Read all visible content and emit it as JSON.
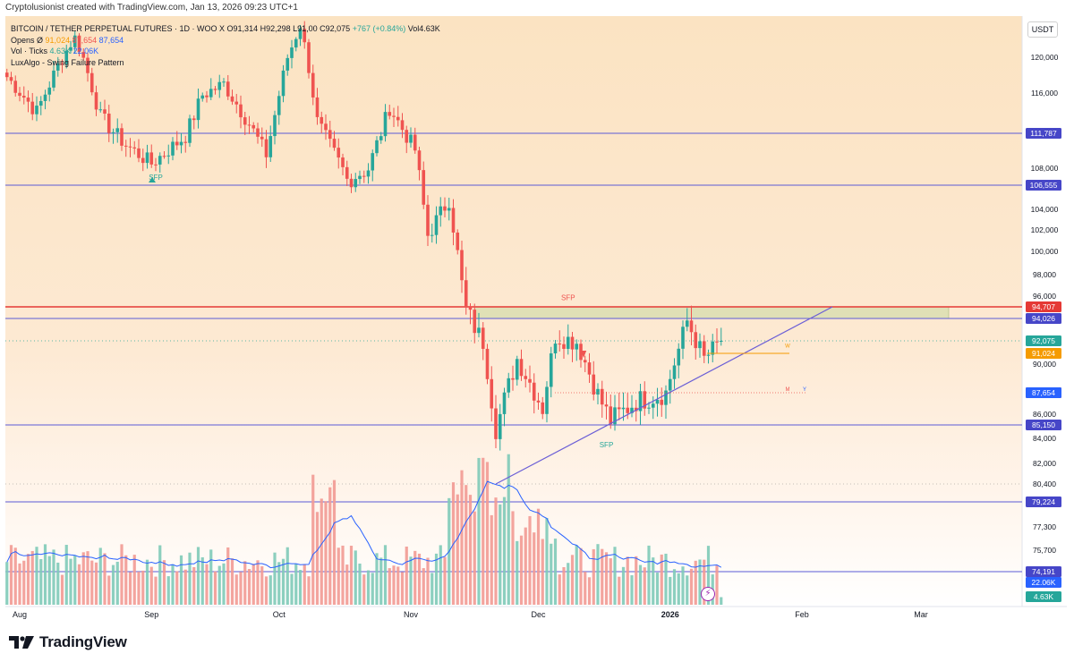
{
  "header": {
    "credit": "Cryptolusionist created with TradingView.com, Jan 13, 2026 09:23 UTC+1",
    "symbol": "BITCOIN / TETHER PERPETUAL FUTURES · 1D · WOO X",
    "ohlc": "O91,314 H92,298 L91,00 C92,075",
    "change": "+767 (+0.84%)",
    "vol": "Vol4.63K",
    "opens_label": "Opens  Ø",
    "opens_v1": "91,024",
    "opens_v2": "87,654",
    "opens_v3": "87,654",
    "vol_ticks_label": "Vol · Ticks",
    "vol_ticks_v1": "4.63K",
    "vol_ticks_v2": "22.06K",
    "indicator": "LuxAlgo - Swing Failure Pattern",
    "currency": "USDT"
  },
  "logo": {
    "text": "TradingView"
  },
  "chart_data": {
    "type": "candlestick",
    "timeframe": "1D",
    "x_ticks": [
      "Aug",
      "Sep",
      "Oct",
      "Nov",
      "Dec",
      "2026",
      "Feb",
      "Mar"
    ],
    "y_ticks": [
      "120,000",
      "116,000",
      "108,000",
      "104,000",
      "102,000",
      "100,000",
      "98,000",
      "96,000",
      "90,000",
      "86,000",
      "84,000",
      "82,000",
      "80,400",
      "77,300",
      "75,700"
    ],
    "price_labels": [
      {
        "text": "111,787",
        "value": 111787,
        "kind": "level"
      },
      {
        "text": "106,555",
        "value": 106555,
        "kind": "level"
      },
      {
        "text": "94,707",
        "value": 94707,
        "kind": "red"
      },
      {
        "text": "94,026",
        "value": 94026,
        "kind": "level"
      },
      {
        "text": "92,075",
        "value": 92075,
        "kind": "last"
      },
      {
        "text": "91,024",
        "value": 91024,
        "kind": "orange"
      },
      {
        "text": "87,654",
        "value": 87654,
        "kind": "red"
      },
      {
        "text": "87,654",
        "value": 87654,
        "kind": "blue"
      },
      {
        "text": "85,150",
        "value": 85150,
        "kind": "level"
      },
      {
        "text": "79,224",
        "value": 79224,
        "kind": "level"
      },
      {
        "text": "74,191",
        "value": 74191,
        "kind": "level"
      }
    ],
    "volume_labels": [
      "22.06K",
      "4.63K"
    ],
    "horizontal_levels": [
      111787,
      106555,
      94707,
      94026,
      85150,
      79224,
      74191
    ],
    "annotations": [
      {
        "text": "SFP",
        "color": "#26a69a"
      },
      {
        "text": "SFP",
        "color": "#ef5350"
      },
      {
        "text": "SFP",
        "color": "#26a69a"
      },
      {
        "text": "M",
        "color": "#ef5350"
      },
      {
        "text": "Y",
        "color": "#2962ff"
      },
      {
        "text": "W",
        "color": "#f59b00"
      }
    ],
    "anchor_closes": [
      [
        "2025-07-29",
        117800
      ],
      [
        "2025-08-05",
        114000
      ],
      [
        "2025-08-10",
        119000
      ],
      [
        "2025-08-14",
        123000
      ],
      [
        "2025-08-20",
        113500
      ],
      [
        "2025-08-26",
        110500
      ],
      [
        "2025-09-01",
        108500
      ],
      [
        "2025-09-09",
        111500
      ],
      [
        "2025-09-13",
        115800
      ],
      [
        "2025-09-18",
        117000
      ],
      [
        "2025-09-24",
        112800
      ],
      [
        "2025-09-28",
        109500
      ],
      [
        "2025-10-03",
        120000
      ],
      [
        "2025-10-06",
        124800
      ],
      [
        "2025-10-10",
        113000
      ],
      [
        "2025-10-17",
        107000
      ],
      [
        "2025-10-22",
        108000
      ],
      [
        "2025-10-27",
        114500
      ],
      [
        "2025-11-02",
        110000
      ],
      [
        "2025-11-05",
        101500
      ],
      [
        "2025-11-10",
        105000
      ],
      [
        "2025-11-14",
        94500
      ],
      [
        "2025-11-18",
        92000
      ],
      [
        "2025-11-21",
        84800
      ],
      [
        "2025-11-26",
        90500
      ],
      [
        "2025-12-02",
        86500
      ],
      [
        "2025-12-05",
        92500
      ],
      [
        "2025-12-10",
        92000
      ],
      [
        "2025-12-15",
        87500
      ],
      [
        "2025-12-18",
        85500
      ],
      [
        "2025-12-24",
        87000
      ],
      [
        "2025-12-31",
        87654
      ],
      [
        "2026-01-05",
        93800
      ],
      [
        "2026-01-09",
        90500
      ],
      [
        "2026-01-13",
        92075
      ]
    ]
  }
}
